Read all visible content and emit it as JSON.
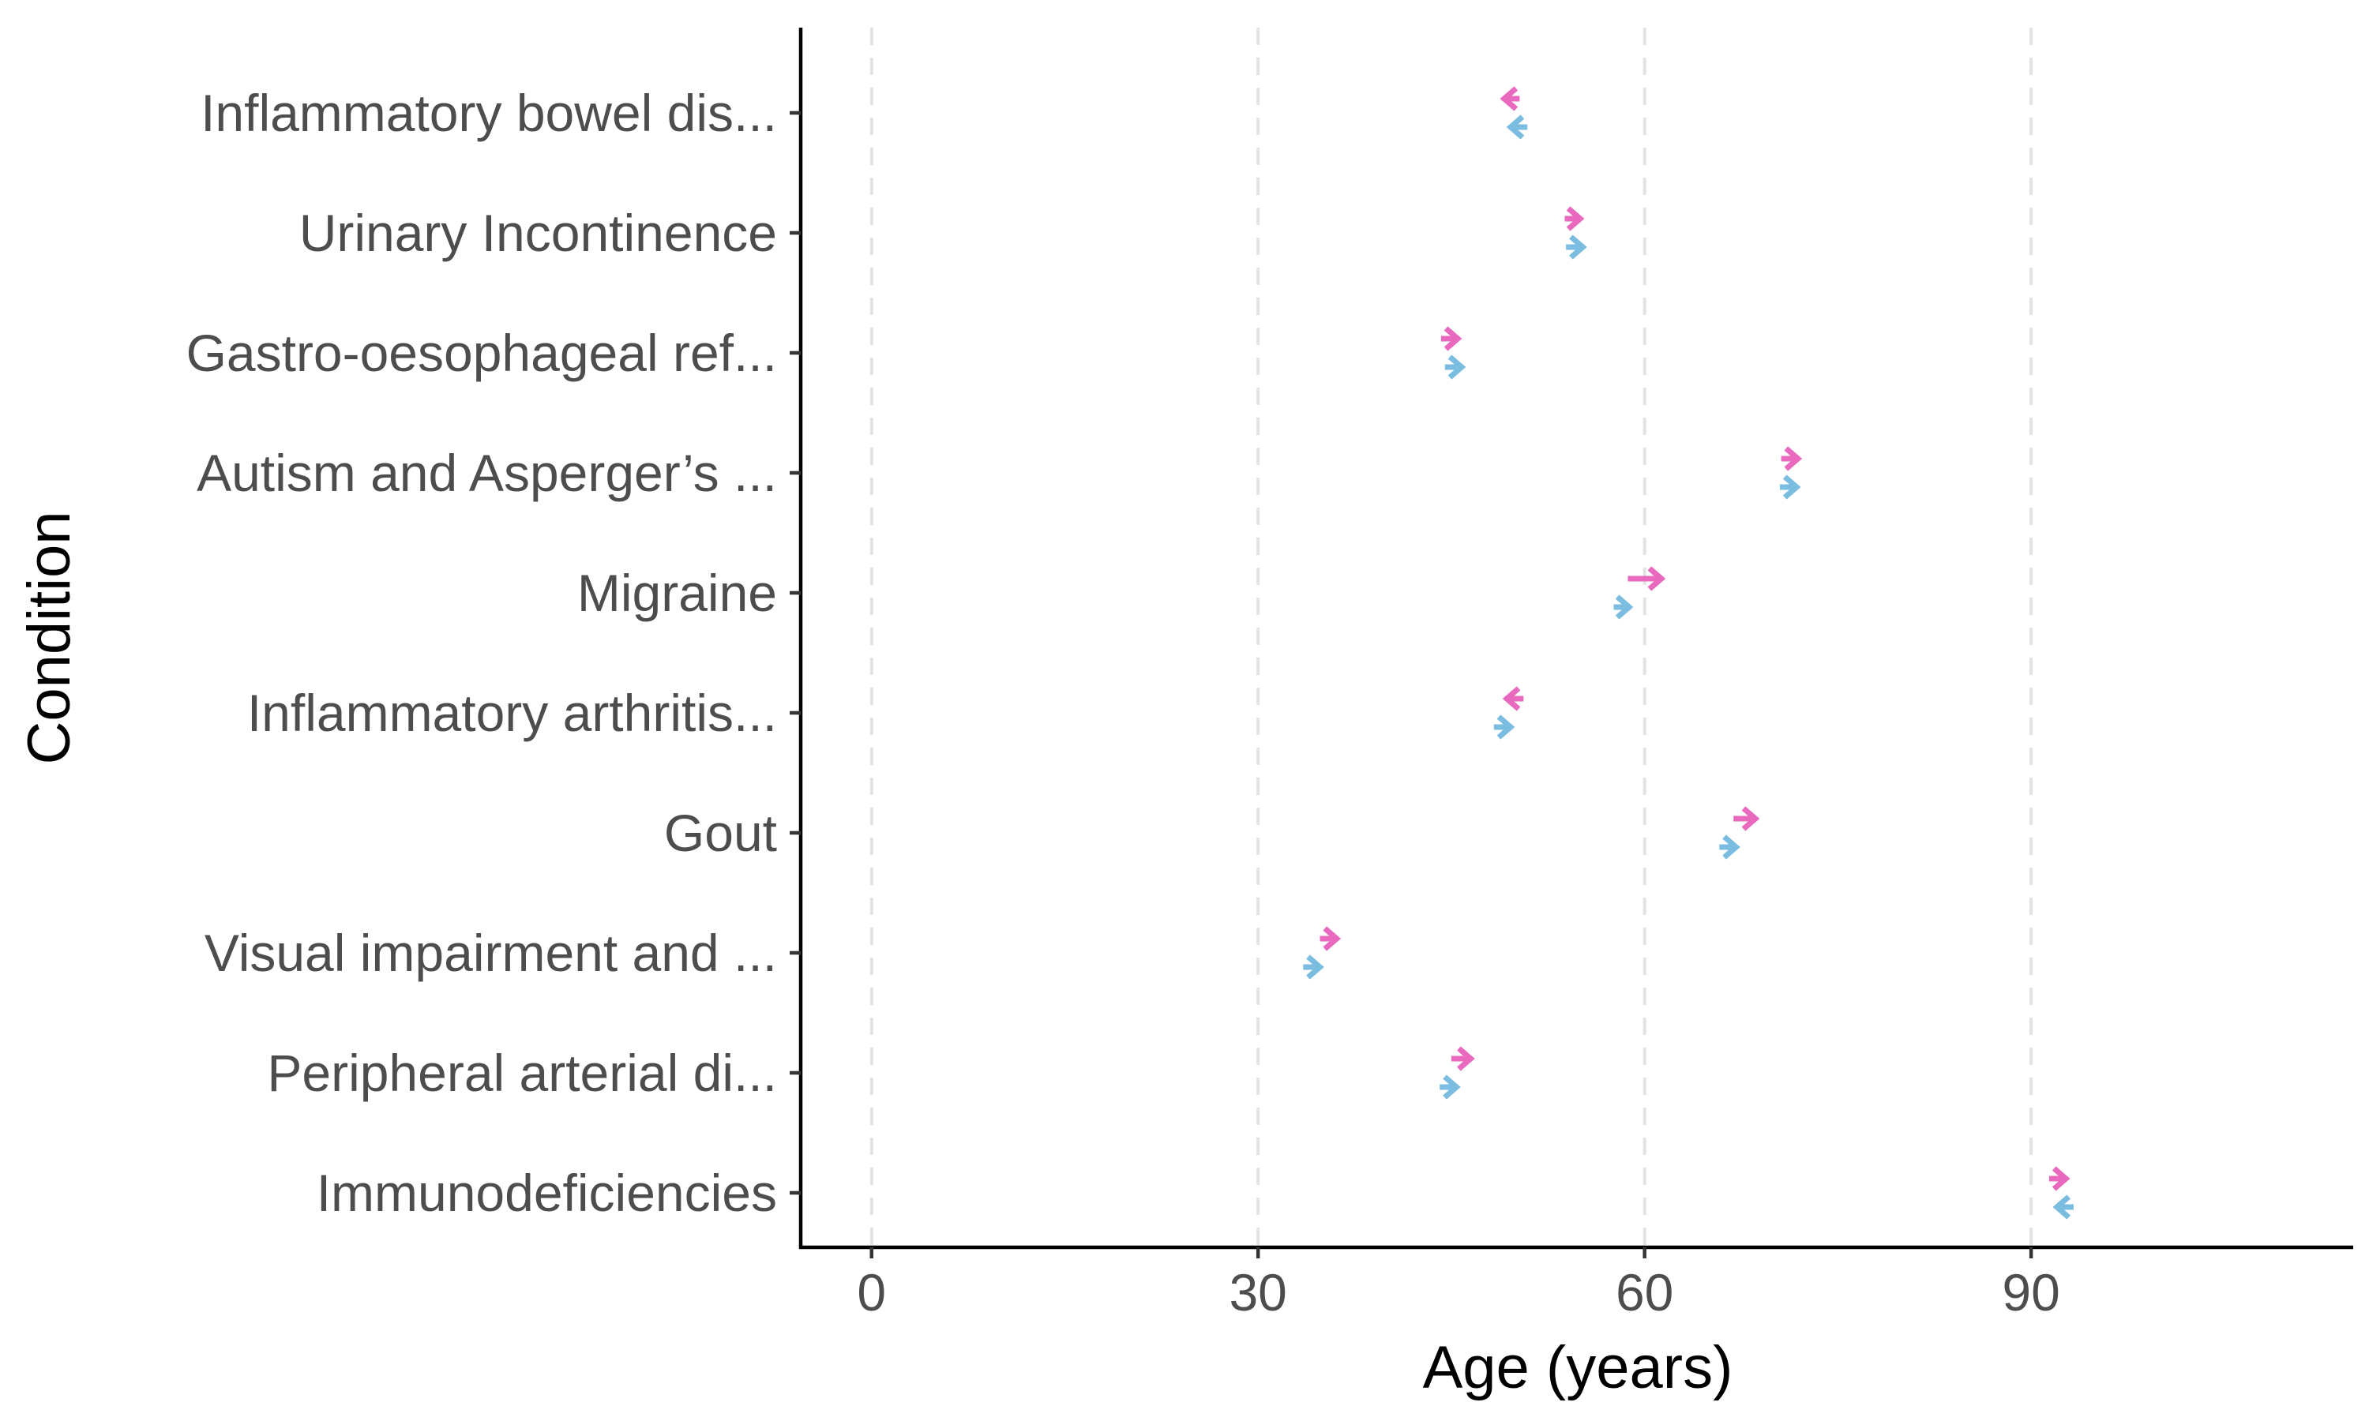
{
  "chart_data": {
    "type": "arrow",
    "xlabel": "Age (years)",
    "ylabel": "Condition",
    "xlim": [
      -5.5,
      115
    ],
    "x_ticks": [
      0,
      30,
      60,
      90
    ],
    "grid": "vertical dashed",
    "categories": [
      "Inflammatory bowel dis...",
      "Urinary Incontinence",
      "Gastro-oesophageal ref...",
      "Autism and Asperger’s ...",
      "Migraine",
      "Inflammatory arthritis...",
      "Gout",
      "Visual impairment and ...",
      "Peripheral arterial di...",
      "Immunodeficiencies"
    ],
    "series": [
      {
        "color": "#e869be",
        "arrows": [
          {
            "from": 50.3,
            "to": 49.1
          },
          {
            "from": 53.8,
            "to": 55.0
          },
          {
            "from": 44.2,
            "to": 45.5
          },
          {
            "from": 70.6,
            "to": 71.9
          },
          {
            "from": 58.7,
            "to": 61.3
          },
          {
            "from": 50.6,
            "to": 49.3
          },
          {
            "from": 66.9,
            "to": 68.6
          },
          {
            "from": 34.8,
            "to": 36.1
          },
          {
            "from": 45.0,
            "to": 46.5
          },
          {
            "from": 91.4,
            "to": 92.7
          }
        ]
      },
      {
        "color": "#7bbde0",
        "arrows": [
          {
            "from": 50.9,
            "to": 49.6
          },
          {
            "from": 53.9,
            "to": 55.2
          },
          {
            "from": 44.5,
            "to": 45.8
          },
          {
            "from": 70.5,
            "to": 71.8
          },
          {
            "from": 57.6,
            "to": 58.8
          },
          {
            "from": 48.3,
            "to": 49.6
          },
          {
            "from": 65.8,
            "to": 67.1
          },
          {
            "from": 33.5,
            "to": 34.8
          },
          {
            "from": 44.1,
            "to": 45.4
          },
          {
            "from": 93.3,
            "to": 92.0
          }
        ]
      }
    ]
  }
}
